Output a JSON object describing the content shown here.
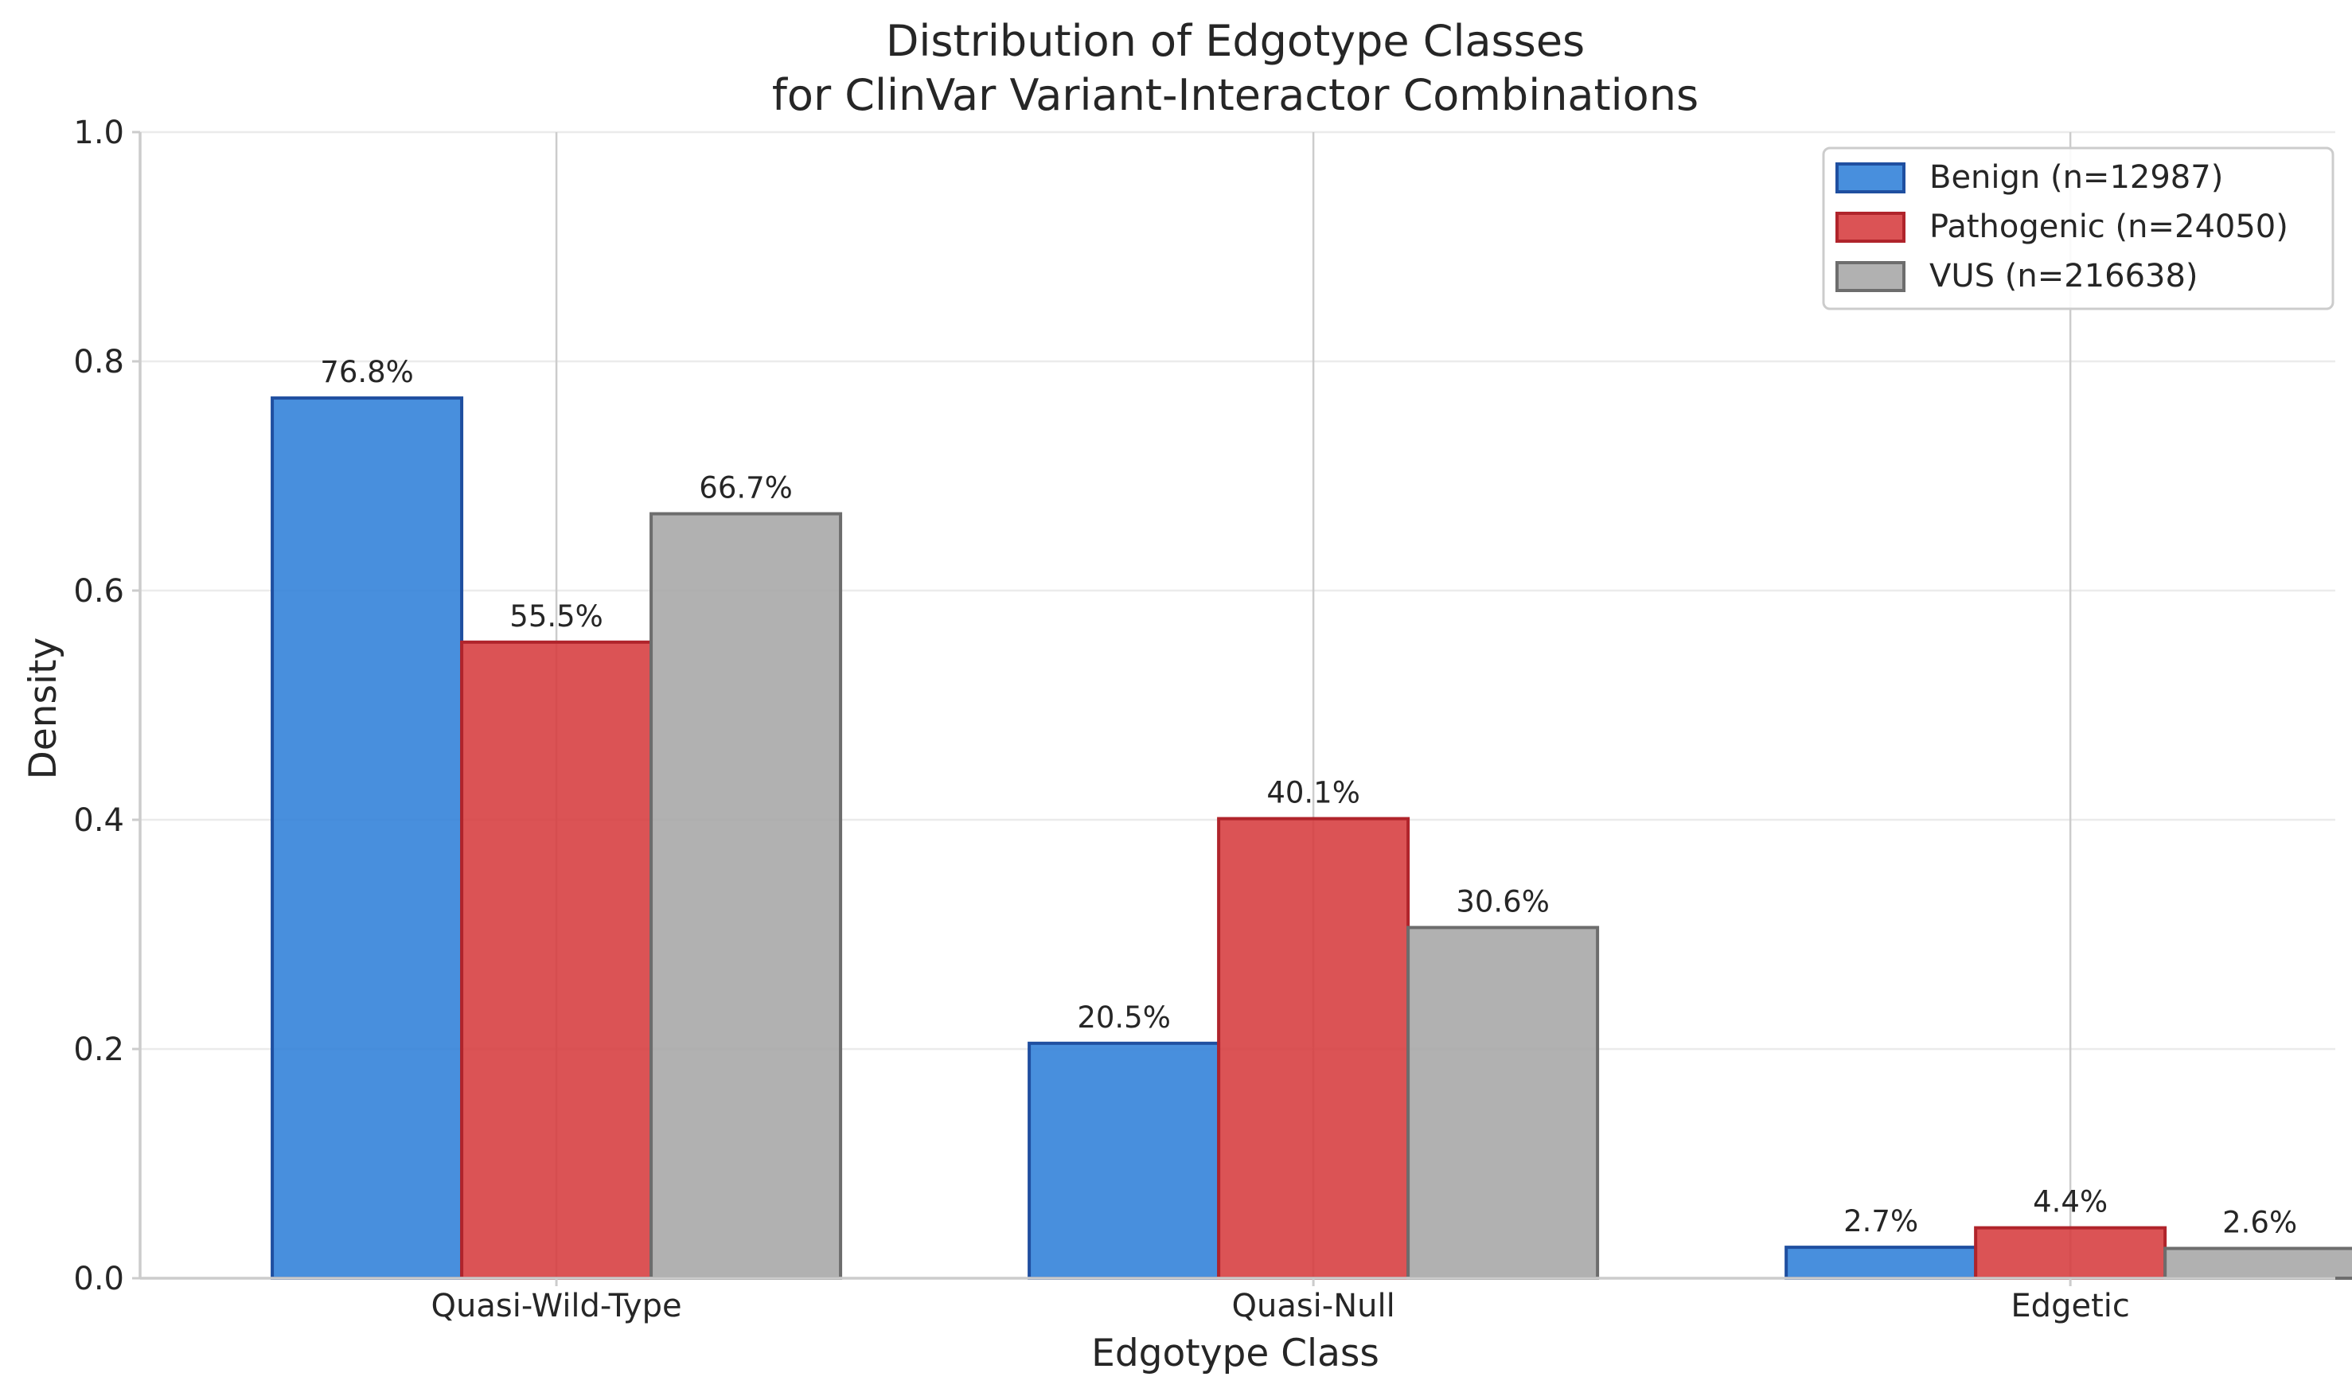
{
  "chart_data": {
    "type": "bar",
    "title_lines": [
      "Distribution of Edgotype Classes",
      "for ClinVar Variant-Interactor Combinations"
    ],
    "xlabel": "Edgotype Class",
    "ylabel": "Density",
    "categories": [
      "Quasi-Wild-Type",
      "Quasi-Null",
      "Edgetic"
    ],
    "ylim": [
      0,
      1.0
    ],
    "yticks": [
      0.0,
      0.2,
      0.4,
      0.6,
      0.8,
      1.0
    ],
    "ytick_labels": [
      "0.0",
      "0.2",
      "0.4",
      "0.6",
      "0.8",
      "1.0"
    ],
    "grid": true,
    "legend_position": "top-right",
    "series": [
      {
        "name": "Benign (n=12987)",
        "values": [
          0.768,
          0.205,
          0.027
        ],
        "labels": [
          "76.8%",
          "20.5%",
          "2.7%"
        ],
        "fill": "#2f80d8",
        "edge": "#1f4fa0"
      },
      {
        "name": "Pathogenic (n=24050)",
        "values": [
          0.555,
          0.401,
          0.044
        ],
        "labels": [
          "55.5%",
          "40.1%",
          "4.4%"
        ],
        "fill": "#d63b3d",
        "edge": "#b0242b"
      },
      {
        "name": "VUS (n=216638)",
        "values": [
          0.667,
          0.306,
          0.026
        ],
        "labels": [
          "66.7%",
          "30.6%",
          "2.6%"
        ],
        "fill": "#a6a6a6",
        "edge": "#6d6d6d"
      }
    ]
  }
}
